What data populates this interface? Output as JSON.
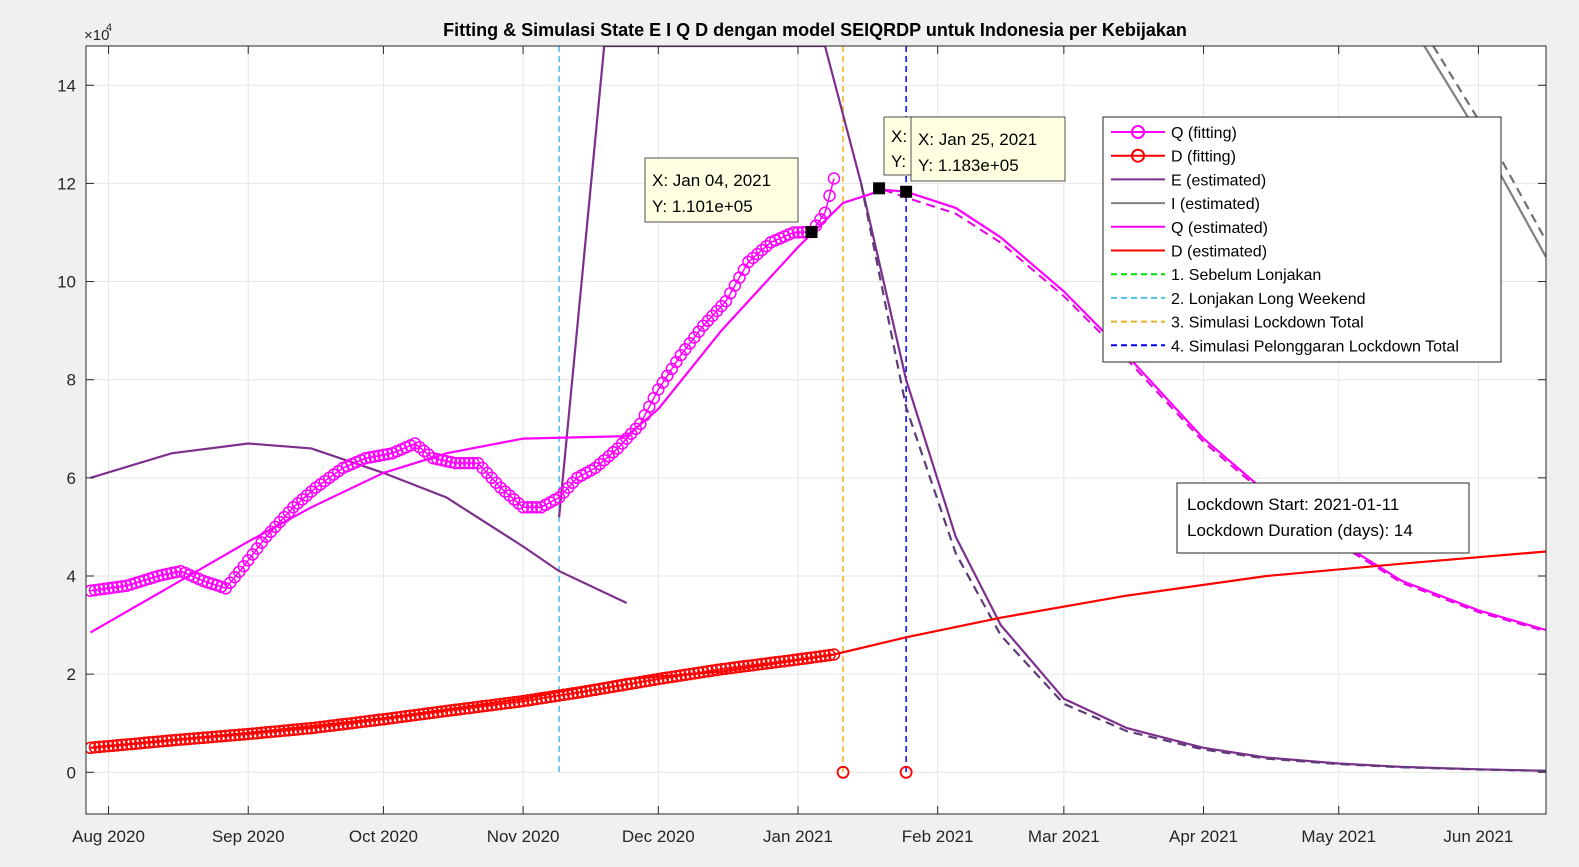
{
  "chart_data": {
    "type": "line",
    "title": "Fitting & Simulasi State  E I Q D dengan model SEIQRDP untuk Indonesia per Kebijakan",
    "xlabel": "",
    "ylabel": "",
    "y_exponent_label": "×10",
    "y_exponent_power": "4",
    "xlim": [
      "2020-07-27",
      "2021-06-16"
    ],
    "ylim": [
      -8500,
      148000
    ],
    "grid": true,
    "x_ticks": [
      {
        "date": "2020-08-01",
        "label": "Aug 2020"
      },
      {
        "date": "2020-09-01",
        "label": "Sep 2020"
      },
      {
        "date": "2020-10-01",
        "label": "Oct 2020"
      },
      {
        "date": "2020-11-01",
        "label": "Nov 2020"
      },
      {
        "date": "2020-12-01",
        "label": "Dec 2020"
      },
      {
        "date": "2021-01-01",
        "label": "Jan 2021"
      },
      {
        "date": "2021-02-01",
        "label": "Feb 2021"
      },
      {
        "date": "2021-03-01",
        "label": "Mar 2021"
      },
      {
        "date": "2021-04-01",
        "label": "Apr 2021"
      },
      {
        "date": "2021-05-01",
        "label": "May 2021"
      },
      {
        "date": "2021-06-01",
        "label": "Jun 2021"
      }
    ],
    "y_ticks": [
      {
        "value": 0,
        "label": "0"
      },
      {
        "value": 20000,
        "label": "2"
      },
      {
        "value": 40000,
        "label": "4"
      },
      {
        "value": 60000,
        "label": "6"
      },
      {
        "value": 80000,
        "label": "8"
      },
      {
        "value": 100000,
        "label": "10"
      },
      {
        "value": 120000,
        "label": "12"
      },
      {
        "value": 140000,
        "label": "14"
      }
    ],
    "series": [
      {
        "name": "Q (fitting)",
        "color": "#ff00ff",
        "style": "line-circle",
        "x": [
          "2020-07-28",
          "2020-08-05",
          "2020-08-12",
          "2020-08-17",
          "2020-08-22",
          "2020-08-27",
          "2020-08-31",
          "2020-09-05",
          "2020-09-11",
          "2020-09-16",
          "2020-09-22",
          "2020-09-27",
          "2020-10-03",
          "2020-10-08",
          "2020-10-12",
          "2020-10-17",
          "2020-10-22",
          "2020-10-27",
          "2020-11-01",
          "2020-11-05",
          "2020-11-09",
          "2020-11-13",
          "2020-11-17",
          "2020-11-22",
          "2020-11-27",
          "2020-12-01",
          "2020-12-06",
          "2020-12-11",
          "2020-12-16",
          "2020-12-21",
          "2020-12-26",
          "2020-12-31",
          "2021-01-04",
          "2021-01-07",
          "2021-01-09"
        ],
        "y": [
          37000,
          38000,
          40000,
          41000,
          39000,
          37500,
          42000,
          48000,
          54000,
          58000,
          62000,
          64000,
          65000,
          67000,
          64000,
          63000,
          63000,
          58000,
          54000,
          54000,
          56000,
          60000,
          62000,
          66000,
          71000,
          78000,
          85000,
          91000,
          96000,
          104000,
          108000,
          110000,
          110100,
          114000,
          121000
        ]
      },
      {
        "name": "D (fitting)",
        "color": "#ff0000",
        "style": "line-circle",
        "x": [
          "2020-07-28",
          "2020-08-15",
          "2020-09-01",
          "2020-09-15",
          "2020-10-01",
          "2020-10-15",
          "2020-11-01",
          "2020-11-15",
          "2020-12-01",
          "2020-12-15",
          "2021-01-01",
          "2021-01-09",
          "2021-01-11",
          "2021-01-25"
        ],
        "y": [
          5000,
          6500,
          7800,
          9000,
          10800,
          12500,
          14500,
          16500,
          19000,
          21000,
          23000,
          24000,
          0,
          0
        ]
      },
      {
        "name": "E (estimated)",
        "color": "#7e2f8e",
        "style": "solid",
        "x": [
          "2020-07-28",
          "2020-08-15",
          "2020-09-01",
          "2020-09-15",
          "2020-10-01",
          "2020-10-15",
          "2020-11-01",
          "2020-11-09",
          "2020-11-24"
        ],
        "y": [
          60000,
          65000,
          67000,
          66000,
          61000,
          56000,
          46000,
          41000,
          34500
        ],
        "x2": [
          "2020-11-09",
          "2020-11-19",
          "2021-01-07",
          "2021-01-15",
          "2021-01-25",
          "2021-02-05",
          "2021-02-15",
          "2021-03-01",
          "2021-03-15",
          "2021-04-01",
          "2021-04-15",
          "2021-05-01",
          "2021-05-15",
          "2021-06-01",
          "2021-06-16"
        ],
        "y2": [
          52000,
          148000,
          148000,
          120000,
          80000,
          48000,
          30000,
          15000,
          9000,
          5000,
          3000,
          1800,
          1100,
          600,
          300
        ]
      },
      {
        "name": "I (estimated)",
        "color": "#808080",
        "style": "solid",
        "x": [
          "2021-05-20",
          "2021-06-01",
          "2021-06-16"
        ],
        "y": [
          148000,
          130000,
          105000
        ]
      },
      {
        "name": "Q (estimated)",
        "color": "#ff00ff",
        "style": "solid",
        "x": [
          "2020-07-28",
          "2020-08-15",
          "2020-09-01",
          "2020-09-15",
          "2020-10-01",
          "2020-10-15",
          "2020-11-01",
          "2020-11-24",
          "2020-12-01",
          "2020-12-15",
          "2021-01-01",
          "2021-01-11",
          "2021-01-20",
          "2021-01-25",
          "2021-02-05",
          "2021-02-15",
          "2021-03-01",
          "2021-03-15",
          "2021-04-01",
          "2021-04-15",
          "2021-05-01",
          "2021-05-15",
          "2021-06-01",
          "2021-06-16"
        ],
        "y": [
          28500,
          38000,
          47000,
          54000,
          61000,
          65000,
          68000,
          68500,
          74000,
          90000,
          107000,
          116000,
          118700,
          118300,
          115000,
          109000,
          98000,
          85000,
          68000,
          57000,
          47000,
          39000,
          33000,
          29000
        ]
      },
      {
        "name": "D (estimated)",
        "color": "#ff0000",
        "style": "solid",
        "x": [
          "2020-07-28",
          "2020-09-01",
          "2020-10-01",
          "2020-11-01",
          "2020-11-24",
          "2020-12-15",
          "2021-01-09",
          "2021-01-25",
          "2021-02-15",
          "2021-03-15",
          "2021-04-15",
          "2021-05-15",
          "2021-06-16"
        ],
        "y": [
          5000,
          8000,
          11000,
          15000,
          19000,
          20500,
          24000,
          27500,
          31500,
          36000,
          40000,
          42500,
          45000
        ]
      }
    ],
    "vertical_lines": [
      {
        "name": "1. Sebelum Lonjakan",
        "color": "#00dd00",
        "date": null
      },
      {
        "name": "2. Lonjakan Long Weekend",
        "color": "#4dbeee",
        "date": "2020-11-09"
      },
      {
        "name": "3. Simulasi Lockdown Total",
        "color": "#edb120",
        "date": "2021-01-11"
      },
      {
        "name": "4. Simulasi Pelonggaran Lockdown Total",
        "color": "#0000ff",
        "date": "2021-01-25"
      }
    ],
    "legend_position": "top-right",
    "datatips": [
      {
        "x_label": "X: Jan 04, 2021",
        "y_label": "Y: 1.101e+05",
        "date": "2021-01-04",
        "value": 110100
      },
      {
        "x_label": "X:",
        "y_label": "Y:",
        "date": "2021-01-19",
        "value": 119000
      },
      {
        "x_label": "X: Jan 25, 2021",
        "y_label": "Y: 1.183e+05",
        "date": "2021-01-25",
        "value": 118300
      }
    ],
    "annotation": {
      "line1": "Lockdown Start: 2021-01-11",
      "line2": "Lockdown Duration (days): 14"
    }
  }
}
